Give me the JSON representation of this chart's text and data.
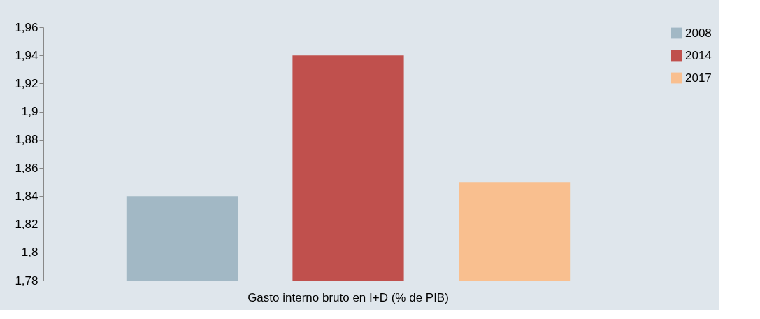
{
  "chart_data": {
    "type": "bar",
    "categories": [
      "Gasto interno bruto en I+D (% de PIB)"
    ],
    "series": [
      {
        "name": "2008",
        "color": "#a2b8c5",
        "values": [
          1.84
        ]
      },
      {
        "name": "2014",
        "color": "#c0504d",
        "values": [
          1.94
        ]
      },
      {
        "name": "2017",
        "color": "#f9bf8f",
        "values": [
          1.85
        ]
      }
    ],
    "ylim": [
      1.78,
      1.96
    ],
    "yticks": [
      {
        "value": 1.78,
        "label": "1,78"
      },
      {
        "value": 1.8,
        "label": "1,8"
      },
      {
        "value": 1.82,
        "label": "1,82"
      },
      {
        "value": 1.84,
        "label": "1,84"
      },
      {
        "value": 1.86,
        "label": "1,86"
      },
      {
        "value": 1.88,
        "label": "1,88"
      },
      {
        "value": 1.9,
        "label": "1,9"
      },
      {
        "value": 1.92,
        "label": "1,92"
      },
      {
        "value": 1.94,
        "label": "1,94"
      },
      {
        "value": 1.96,
        "label": "1,96"
      }
    ],
    "grid": false,
    "legend": "right"
  }
}
